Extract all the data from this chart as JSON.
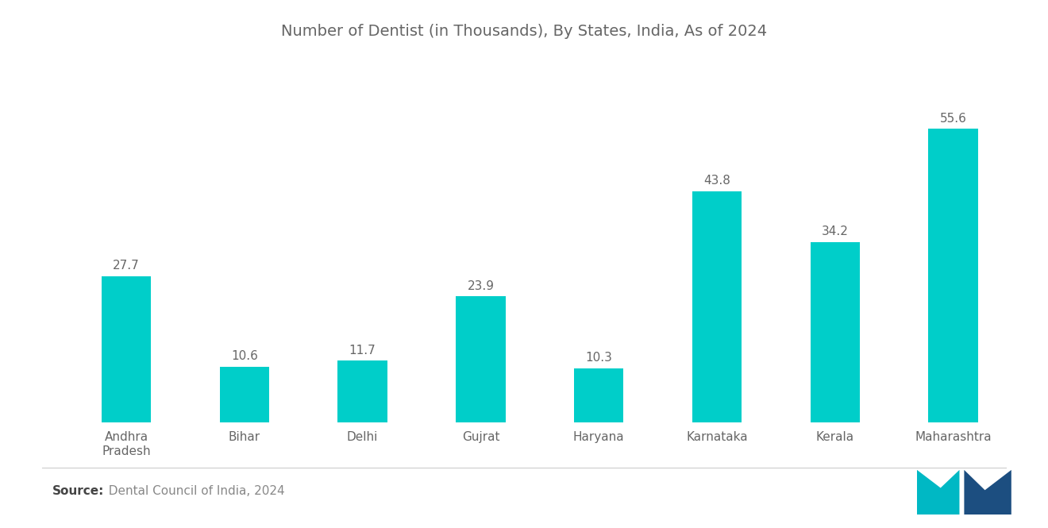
{
  "title": "Number of Dentist (in Thousands), By States, India, As of 2024",
  "categories": [
    "Andhra\nPradesh",
    "Bihar",
    "Delhi",
    "Gujrat",
    "Haryana",
    "Karnataka",
    "Kerala",
    "Maharashtra"
  ],
  "values": [
    27.7,
    10.6,
    11.7,
    23.9,
    10.3,
    43.8,
    34.2,
    55.6
  ],
  "bar_color": "#00CEC9",
  "background_color": "#ffffff",
  "title_color": "#666666",
  "label_color": "#666666",
  "value_label_color": "#666666",
  "source_bold": "Source:",
  "source_text": "  Dental Council of India, 2024",
  "source_color": "#888888",
  "title_fontsize": 14,
  "label_fontsize": 11,
  "value_fontsize": 11,
  "source_fontsize": 11,
  "ylim": [
    0,
    68
  ],
  "bar_width": 0.42,
  "logo_left_color": "#00B8C4",
  "logo_right_color": "#1C4E80"
}
